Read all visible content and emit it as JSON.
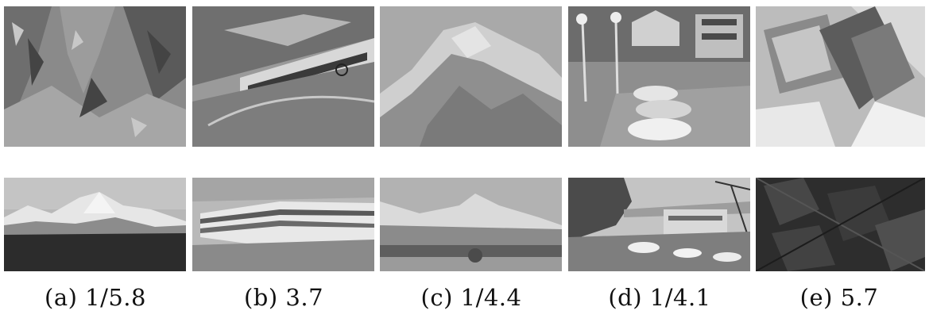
{
  "figure": {
    "panels": [
      {
        "caption": "(a) 1/5.8",
        "top_image": "rocky-cliff-photo",
        "bottom_image": "snowy-mountain-range-photo"
      },
      {
        "caption": "(b) 3.7",
        "top_image": "rotated-building-road-photo",
        "bottom_image": "modern-building-photo"
      },
      {
        "caption": "(c) 1/4.4",
        "top_image": "zoomed-mountain-peak-photo",
        "bottom_image": "mountain-town-view-photo"
      },
      {
        "caption": "(d) 1/4.1",
        "top_image": "parking-lot-houses-photo",
        "bottom_image": "parking-lot-crane-photo"
      },
      {
        "caption": "(e) 5.7",
        "top_image": "rotated-lab-equipment-photo",
        "bottom_image": "dark-aerial-blocks-photo"
      }
    ]
  }
}
